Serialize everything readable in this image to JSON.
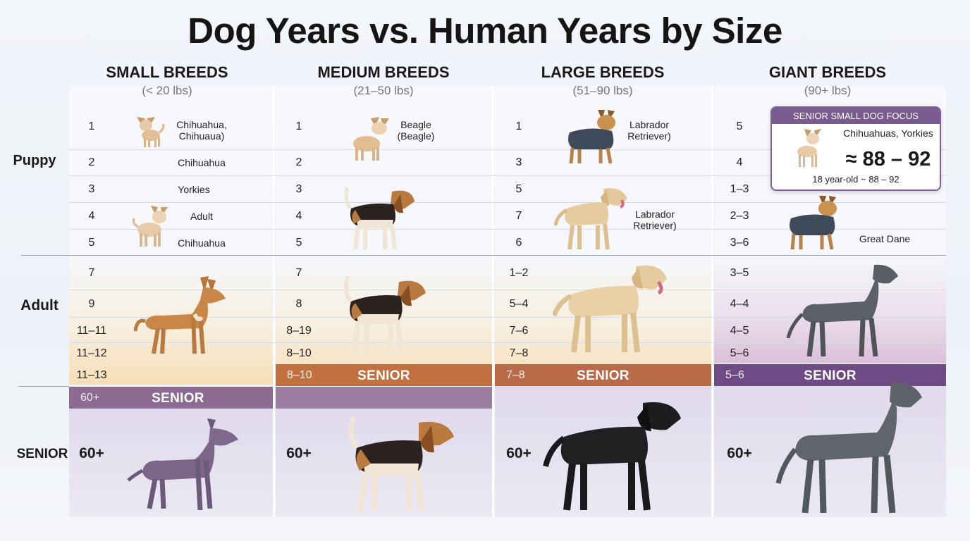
{
  "title": "Dog Years vs. Human Years by Size",
  "columns": [
    {
      "name": "SMALL BREEDS",
      "range": "(< 20 lbs)"
    },
    {
      "name": "MEDIUM BREEDS",
      "range": "(21–50 lbs)"
    },
    {
      "name": "LARGE BREEDS",
      "range": "(51–90 lbs)"
    },
    {
      "name": "GIANT BREEDS",
      "range": "(90+ lbs)"
    }
  ],
  "row_labels": {
    "puppy": "Puppy",
    "adult": "Adult",
    "senior": "SENIOR"
  },
  "small": {
    "puppy": [
      "1",
      "2",
      "3",
      "4",
      "5"
    ],
    "adult": [
      "7",
      "9",
      "11–11",
      "11–12",
      "11–13"
    ],
    "band_value": "60+",
    "band_label": "SENIOR",
    "senior": "60+",
    "breed_labels": [
      "Chihuahua, Chihuaua)",
      "Chihuahua",
      "Yorkies",
      "Adult",
      "Chihuahua"
    ]
  },
  "medium": {
    "puppy": [
      "1",
      "2",
      "3",
      "4",
      "5"
    ],
    "adult": [
      "7",
      "8",
      "8–19",
      "8–10"
    ],
    "band_value": "8–10",
    "band_label": "SENIOR",
    "senior": "60+",
    "breed_labels": [
      "Beagle (Beagle)"
    ]
  },
  "large": {
    "puppy": [
      "1",
      "3",
      "5",
      "7",
      "6"
    ],
    "adult": [
      "1–2",
      "5–4",
      "7–6",
      "7–8"
    ],
    "band_value": "7–8",
    "band_label": "SENIOR",
    "senior": "60+",
    "breed_labels": [
      "Labrador Retriever)",
      "Labrador Retriever)"
    ]
  },
  "giant": {
    "puppy": [
      "5",
      "4",
      "1–3",
      "2–3",
      "3–6"
    ],
    "adult": [
      "3–5",
      "4–4",
      "4–5",
      "5–6"
    ],
    "band_value": "5–6",
    "band_label": "SENIOR",
    "senior": "60+",
    "breed_labels": [
      "Great Dane"
    ]
  },
  "callout": {
    "header": "SENIOR SMALL DOG FOCUS",
    "breeds": "Chihuahuas, Yorkies",
    "approx": "≈ 88 – 92",
    "note": "18 year-old ~ 88 – 92"
  },
  "colors": {
    "orange_band": "#c2703f",
    "purple_band": "#6f4b86",
    "muted_purple_band": "#8c6a92",
    "callout_accent": "#7a5b90"
  }
}
